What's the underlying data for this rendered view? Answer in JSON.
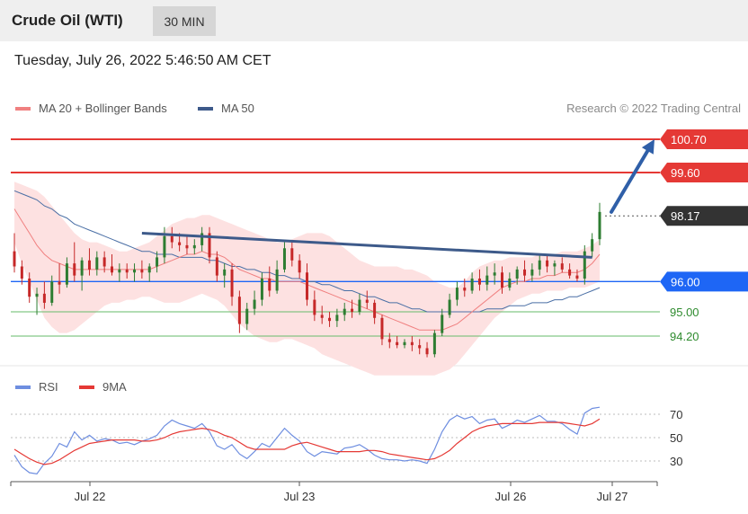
{
  "header": {
    "instrument": "Crude Oil (WTI)",
    "timeframe": "30 MIN",
    "datetime": "Tuesday, July 26, 2022 5:46:50 AM CET"
  },
  "legend": {
    "ma20": "MA 20 + Bollinger Bands",
    "ma50": "MA 50",
    "credit": "Research © 2022 Trading Central"
  },
  "rsi_legend": {
    "rsi": "RSI",
    "ma9": "9MA"
  },
  "colors": {
    "up": "#2e7d32",
    "down": "#c62828",
    "resistance": "#e53935",
    "pivot": "#1e66f5",
    "support": "#66bb6a",
    "support_text": "#2e8b2e",
    "ma20": "#f08080",
    "ma50": "#4a6fa5",
    "band": "#fde1e1",
    "trendline": "#3d5a8a",
    "rsi": "#6e8ee0",
    "rsi_ma": "#e53935",
    "last": "#333333"
  },
  "chart_data": [
    {
      "type": "candlestick",
      "title": "Crude Oil (WTI)",
      "timeframe": "30 MIN",
      "x_ticks": [
        "Jul 22",
        "Jul 23",
        "Jul 26",
        "Jul 27"
      ],
      "y_range": [
        93.3,
        101.3
      ],
      "ohlc": [
        [
          97.0,
          97.6,
          96.3,
          96.5
        ],
        [
          96.5,
          96.7,
          95.9,
          96.1
        ],
        [
          96.1,
          96.3,
          95.3,
          95.5
        ],
        [
          95.5,
          95.8,
          94.9,
          95.6
        ],
        [
          95.6,
          96.0,
          95.1,
          95.3
        ],
        [
          95.3,
          96.2,
          95.2,
          96.0
        ],
        [
          96.0,
          96.6,
          95.6,
          95.9
        ],
        [
          95.9,
          96.8,
          95.8,
          96.6
        ],
        [
          96.6,
          97.3,
          96.0,
          96.2
        ],
        [
          96.2,
          96.8,
          95.7,
          96.7
        ],
        [
          96.7,
          97.1,
          96.2,
          96.4
        ],
        [
          96.4,
          97.0,
          96.2,
          96.8
        ],
        [
          96.8,
          97.0,
          96.3,
          96.5
        ],
        [
          96.5,
          96.9,
          96.2,
          96.3
        ],
        [
          96.3,
          96.6,
          96.0,
          96.4
        ],
        [
          96.4,
          96.6,
          96.1,
          96.3
        ],
        [
          96.3,
          96.6,
          96.0,
          96.4
        ],
        [
          96.4,
          96.7,
          96.1,
          96.3
        ],
        [
          96.3,
          96.6,
          96.0,
          96.5
        ],
        [
          96.5,
          97.0,
          96.3,
          96.8
        ],
        [
          96.8,
          97.8,
          96.6,
          97.5
        ],
        [
          97.5,
          97.8,
          97.1,
          97.3
        ],
        [
          97.3,
          97.6,
          97.0,
          97.2
        ],
        [
          97.2,
          97.5,
          96.9,
          97.1
        ],
        [
          97.1,
          97.4,
          96.9,
          97.2
        ],
        [
          97.2,
          97.8,
          97.0,
          97.6
        ],
        [
          97.6,
          97.8,
          96.6,
          96.8
        ],
        [
          96.8,
          97.0,
          96.0,
          96.2
        ],
        [
          96.2,
          96.6,
          95.8,
          96.4
        ],
        [
          96.4,
          96.6,
          95.2,
          95.5
        ],
        [
          95.5,
          95.7,
          94.3,
          94.6
        ],
        [
          94.6,
          95.3,
          94.4,
          95.1
        ],
        [
          95.1,
          95.7,
          94.9,
          95.4
        ],
        [
          95.4,
          96.3,
          95.2,
          96.1
        ],
        [
          96.1,
          96.5,
          95.5,
          95.7
        ],
        [
          95.7,
          96.7,
          95.6,
          96.4
        ],
        [
          96.4,
          97.3,
          96.3,
          97.1
        ],
        [
          97.1,
          97.3,
          96.5,
          96.7
        ],
        [
          96.7,
          96.9,
          96.1,
          96.3
        ],
        [
          96.3,
          96.6,
          95.2,
          95.4
        ],
        [
          95.4,
          95.7,
          94.7,
          94.9
        ],
        [
          94.9,
          95.2,
          94.6,
          94.8
        ],
        [
          94.8,
          95.0,
          94.5,
          94.7
        ],
        [
          94.7,
          95.1,
          94.5,
          94.9
        ],
        [
          94.9,
          95.3,
          94.7,
          95.1
        ],
        [
          95.1,
          95.4,
          94.8,
          95.0
        ],
        [
          95.0,
          95.6,
          94.9,
          95.4
        ],
        [
          95.4,
          95.7,
          95.1,
          95.3
        ],
        [
          95.3,
          95.4,
          94.6,
          94.8
        ],
        [
          94.8,
          94.9,
          93.9,
          94.1
        ],
        [
          94.1,
          94.3,
          93.8,
          94.0
        ],
        [
          94.0,
          94.2,
          93.8,
          93.9
        ],
        [
          93.9,
          94.1,
          93.8,
          94.0
        ],
        [
          94.0,
          94.2,
          93.7,
          93.9
        ],
        [
          93.9,
          94.1,
          93.6,
          93.8
        ],
        [
          93.8,
          94.0,
          93.5,
          93.6
        ],
        [
          93.6,
          94.4,
          93.5,
          94.3
        ],
        [
          94.3,
          95.1,
          94.2,
          94.9
        ],
        [
          94.9,
          95.6,
          94.8,
          95.4
        ],
        [
          95.4,
          96.0,
          95.2,
          95.8
        ],
        [
          95.8,
          96.1,
          95.5,
          95.7
        ],
        [
          95.7,
          96.3,
          95.6,
          96.1
        ],
        [
          96.1,
          96.4,
          95.7,
          95.9
        ],
        [
          95.9,
          96.5,
          95.7,
          96.2
        ],
        [
          96.2,
          96.6,
          95.9,
          96.3
        ],
        [
          96.3,
          96.5,
          95.6,
          95.8
        ],
        [
          95.8,
          96.3,
          95.7,
          96.1
        ],
        [
          96.1,
          96.5,
          95.9,
          96.4
        ],
        [
          96.4,
          96.7,
          96.0,
          96.2
        ],
        [
          96.2,
          96.6,
          96.0,
          96.4
        ],
        [
          96.4,
          96.9,
          96.2,
          96.7
        ],
        [
          96.7,
          96.9,
          96.3,
          96.5
        ],
        [
          96.5,
          96.7,
          96.2,
          96.6
        ],
        [
          96.6,
          96.8,
          96.3,
          96.4
        ],
        [
          96.4,
          96.6,
          96.1,
          96.2
        ],
        [
          96.2,
          96.4,
          96.0,
          96.1
        ],
        [
          96.1,
          97.2,
          95.9,
          97.0
        ],
        [
          97.0,
          97.6,
          96.8,
          97.4
        ],
        [
          97.4,
          98.6,
          97.2,
          98.3
        ]
      ],
      "ma20": [
        98.4,
        98.0,
        97.6,
        97.2,
        96.9,
        96.7,
        96.6,
        96.5,
        96.4,
        96.4,
        96.4,
        96.4,
        96.4,
        96.4,
        96.4,
        96.4,
        96.4,
        96.4,
        96.4,
        96.5,
        96.6,
        96.7,
        96.8,
        96.9,
        96.9,
        97.0,
        96.9,
        96.9,
        96.8,
        96.6,
        96.4,
        96.3,
        96.2,
        96.1,
        96.1,
        96.0,
        96.0,
        96.0,
        96.0,
        95.9,
        95.8,
        95.7,
        95.6,
        95.5,
        95.4,
        95.3,
        95.2,
        95.1,
        95.0,
        94.9,
        94.8,
        94.7,
        94.6,
        94.5,
        94.4,
        94.4,
        94.4,
        94.4,
        94.5,
        94.6,
        94.8,
        95.0,
        95.2,
        95.4,
        95.6,
        95.8,
        95.9,
        96.0,
        96.0,
        96.1,
        96.1,
        96.2,
        96.2,
        96.3,
        96.3,
        96.3,
        96.4,
        96.6,
        96.9
      ],
      "ma50": [
        99.0,
        98.9,
        98.8,
        98.7,
        98.5,
        98.4,
        98.2,
        98.1,
        97.9,
        97.8,
        97.7,
        97.6,
        97.5,
        97.4,
        97.3,
        97.2,
        97.1,
        97.0,
        97.0,
        96.9,
        96.9,
        96.9,
        96.8,
        96.8,
        96.8,
        96.8,
        96.7,
        96.7,
        96.6,
        96.5,
        96.5,
        96.4,
        96.4,
        96.3,
        96.3,
        96.2,
        96.2,
        96.1,
        96.1,
        96.0,
        96.0,
        95.9,
        95.9,
        95.8,
        95.7,
        95.7,
        95.6,
        95.5,
        95.5,
        95.4,
        95.3,
        95.3,
        95.2,
        95.1,
        95.1,
        95.0,
        95.0,
        95.0,
        95.0,
        95.0,
        95.0,
        95.0,
        95.0,
        95.1,
        95.1,
        95.1,
        95.2,
        95.2,
        95.2,
        95.3,
        95.3,
        95.3,
        95.4,
        95.4,
        95.5,
        95.5,
        95.6,
        95.7,
        95.8
      ],
      "bb_upper": [
        99.3,
        99.2,
        99.1,
        99.0,
        98.8,
        98.5,
        98.2,
        97.9,
        97.6,
        97.4,
        97.3,
        97.3,
        97.2,
        97.1,
        97.0,
        97.0,
        97.1,
        97.2,
        97.3,
        97.5,
        97.7,
        97.9,
        98.0,
        98.1,
        98.1,
        98.2,
        98.2,
        98.1,
        98.0,
        97.9,
        97.8,
        97.7,
        97.6,
        97.5,
        97.4,
        97.3,
        97.3,
        97.4,
        97.5,
        97.6,
        97.6,
        97.6,
        97.5,
        97.3,
        97.1,
        96.9,
        96.7,
        96.6,
        96.5,
        96.5,
        96.5,
        96.5,
        96.4,
        96.4,
        96.3,
        96.2,
        96.0,
        95.9,
        95.8,
        95.8,
        96.0,
        96.3,
        96.5,
        96.6,
        96.7,
        96.7,
        96.8,
        96.8,
        96.8,
        96.8,
        96.9,
        96.9,
        96.9,
        97.0,
        97.0,
        97.0,
        97.1,
        97.2,
        97.4
      ],
      "bb_lower": [
        97.3,
        96.6,
        96.0,
        95.4,
        94.8,
        94.5,
        94.3,
        94.3,
        94.4,
        94.6,
        94.8,
        95.0,
        95.2,
        95.3,
        95.3,
        95.4,
        95.4,
        95.5,
        95.5,
        95.4,
        95.3,
        95.3,
        95.3,
        95.4,
        95.5,
        95.6,
        95.5,
        95.4,
        95.2,
        94.9,
        94.6,
        94.4,
        94.2,
        94.1,
        94.0,
        94.0,
        94.1,
        94.1,
        94.0,
        93.9,
        93.8,
        93.6,
        93.5,
        93.4,
        93.3,
        93.2,
        93.1,
        93.0,
        92.9,
        92.9,
        92.9,
        92.9,
        92.9,
        92.9,
        92.9,
        92.9,
        92.9,
        93.0,
        93.1,
        93.3,
        93.6,
        93.9,
        94.2,
        94.5,
        94.8,
        95.0,
        95.2,
        95.4,
        95.5,
        95.6,
        95.6,
        95.7,
        95.7,
        95.7,
        95.8,
        95.8,
        95.8,
        95.9,
        96.0
      ],
      "trendline": [
        [
          17,
          97.6
        ],
        [
          77,
          96.8
        ]
      ],
      "levels": [
        {
          "value": 100.7,
          "label": "100.70",
          "kind": "resistance"
        },
        {
          "value": 99.6,
          "label": "99.60",
          "kind": "resistance"
        },
        {
          "value": 96.0,
          "label": "96.00",
          "kind": "pivot"
        },
        {
          "value": 95.0,
          "label": "95.00",
          "kind": "support"
        },
        {
          "value": 94.2,
          "label": "94.20",
          "kind": "support"
        }
      ],
      "last_price": {
        "value": 98.17,
        "label": "98.17"
      },
      "forecast_arrow": {
        "from": 98.3,
        "to": 100.7
      }
    },
    {
      "type": "line",
      "title": "RSI",
      "y_ticks": [
        30,
        50,
        70
      ],
      "y_range": [
        15,
        85
      ],
      "series": [
        {
          "name": "RSI",
          "values": [
            35,
            25,
            20,
            19,
            28,
            34,
            45,
            42,
            55,
            48,
            52,
            47,
            49,
            48,
            45,
            46,
            44,
            47,
            49,
            52,
            60,
            65,
            62,
            60,
            58,
            62,
            55,
            43,
            40,
            44,
            36,
            32,
            38,
            45,
            42,
            50,
            58,
            52,
            47,
            38,
            34,
            38,
            37,
            36,
            41,
            42,
            44,
            40,
            35,
            32,
            31,
            31,
            30,
            31,
            30,
            28,
            40,
            55,
            65,
            69,
            66,
            68,
            62,
            65,
            66,
            58,
            61,
            65,
            63,
            66,
            69,
            64,
            64,
            62,
            57,
            53,
            71,
            75,
            76
          ]
        },
        {
          "name": "9MA",
          "values": [
            40,
            36,
            32,
            29,
            27,
            28,
            31,
            35,
            39,
            42,
            45,
            46,
            47,
            48,
            48,
            48,
            48,
            47,
            47,
            48,
            50,
            53,
            55,
            56,
            57,
            58,
            57,
            55,
            52,
            50,
            46,
            42,
            40,
            40,
            40,
            40,
            40,
            43,
            45,
            46,
            44,
            42,
            40,
            38,
            38,
            38,
            38,
            39,
            39,
            38,
            36,
            35,
            34,
            33,
            32,
            31,
            32,
            35,
            39,
            45,
            50,
            55,
            58,
            60,
            61,
            62,
            62,
            62,
            62,
            62,
            63,
            63,
            63,
            63,
            62,
            61,
            60,
            62,
            66
          ]
        }
      ],
      "reference_lines": [
        30,
        50,
        70
      ]
    }
  ]
}
